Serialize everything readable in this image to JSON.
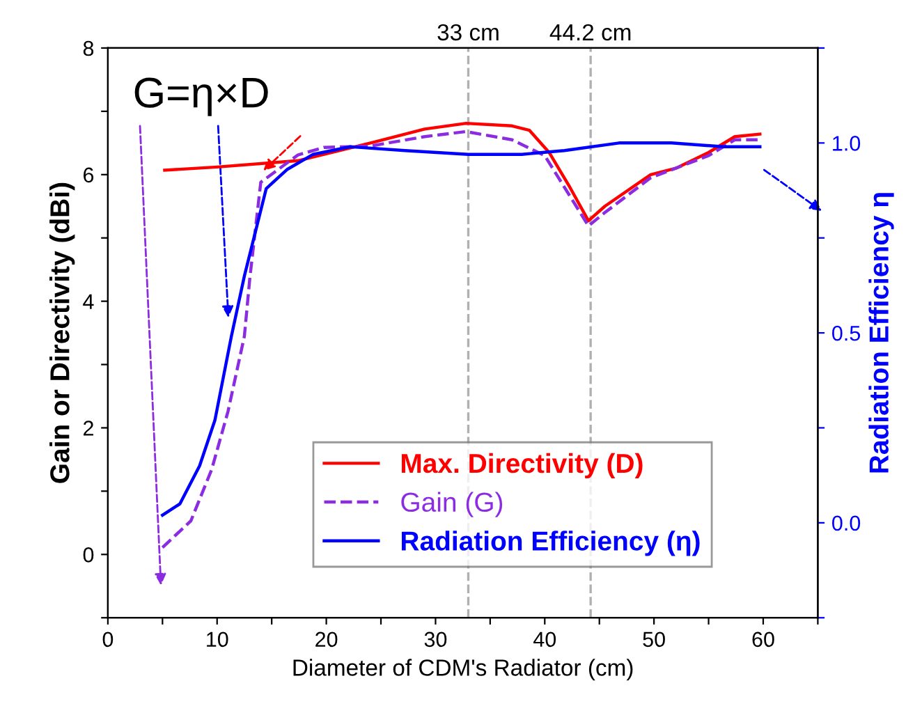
{
  "chart_data": {
    "type": "line",
    "xlabel": "Diameter of CDM's Radiator (cm)",
    "ylabel": "Gain or Directivity (dBi)",
    "y2label": "Radiation Efficiency η",
    "xlim": [
      0,
      65
    ],
    "xticks": [
      0,
      {
        "value": 5,
        "label": null
      },
      10,
      {
        "value": 15,
        "label": null
      },
      20,
      {
        "value": 25,
        "label": null
      },
      30,
      {
        "value": 35,
        "label": null
      },
      40,
      {
        "value": 45,
        "label": null
      },
      50,
      {
        "value": 55,
        "label": null
      },
      60,
      {
        "value": 65,
        "label": null
      }
    ],
    "ylim": [
      -1,
      8
    ],
    "yticks": [
      {
        "value": -1,
        "label": null
      },
      0,
      {
        "value": 1,
        "label": null
      },
      2,
      {
        "value": 3,
        "label": null
      },
      4,
      {
        "value": 5,
        "label": null
      },
      6,
      {
        "value": 7,
        "label": null
      },
      8
    ],
    "y2lim": [
      -0.25,
      1.25
    ],
    "y2ticks": [
      {
        "value": -0.25,
        "label": null
      },
      {
        "value": 0,
        "label": "0.0"
      },
      {
        "value": 0.25,
        "label": null
      },
      0.5,
      {
        "value": 0.75,
        "label": null
      },
      {
        "value": 1,
        "label": "1.0"
      },
      {
        "value": 1.25,
        "label": null
      }
    ],
    "legend": "bottom",
    "grid": false,
    "marker": "none",
    "series": [
      {
        "name": "Max. Directivity (D)",
        "color": "#ff0000",
        "line_style": "solid",
        "x": [
          5.2,
          10,
          17.4,
          24.3,
          29,
          32.8,
          37,
          38.6,
          40.4,
          42.3,
          44,
          45.5,
          49.7,
          52,
          55,
          57.4,
          59.7
        ],
        "values": [
          6.07,
          6.12,
          6.22,
          6.51,
          6.72,
          6.81,
          6.77,
          6.7,
          6.35,
          5.8,
          5.27,
          5.5,
          6.0,
          6.1,
          6.35,
          6.6,
          6.64
        ]
      },
      {
        "name": "Gain (G)",
        "color": "#8b2be2",
        "line_style": "dashed",
        "x": [
          5,
          7.6,
          9.5,
          11,
          12.5,
          13,
          14,
          17.4,
          19.8,
          24,
          29,
          32.8,
          37,
          40,
          44,
          45.5,
          49.7,
          55,
          57.4,
          59.7
        ],
        "values": [
          0.11,
          0.53,
          1.34,
          2.26,
          3.45,
          4.37,
          5.88,
          6.31,
          6.43,
          6.45,
          6.6,
          6.68,
          6.55,
          6.3,
          5.19,
          5.4,
          5.95,
          6.3,
          6.55,
          6.55
        ]
      },
      {
        "name": "Radiation Efficiency (η)",
        "color": "#0000ff",
        "line_style": "solid",
        "axis": "y2",
        "x": [
          5,
          6.6,
          8.4,
          9.8,
          11.3,
          12.5,
          14.5,
          16.4,
          18.8,
          22.2,
          27.2,
          33,
          37.9,
          41.8,
          46.8,
          51.6,
          56.4,
          59.7
        ],
        "values": [
          0.02,
          0.05,
          0.15,
          0.27,
          0.49,
          0.65,
          0.88,
          0.93,
          0.97,
          0.99,
          0.98,
          0.97,
          0.97,
          0.98,
          1.0,
          1.0,
          0.99,
          0.99
        ]
      }
    ],
    "ref_lines": [
      {
        "axis": "x",
        "value": 33,
        "label": "33 cm",
        "color": "#b0b0b0",
        "line_style": "dashed"
      },
      {
        "axis": "x",
        "value": 44.2,
        "label": "44.2 cm",
        "color": "#b0b0b0",
        "line_style": "dashed"
      }
    ],
    "annotations": [
      "G=η×D"
    ]
  }
}
